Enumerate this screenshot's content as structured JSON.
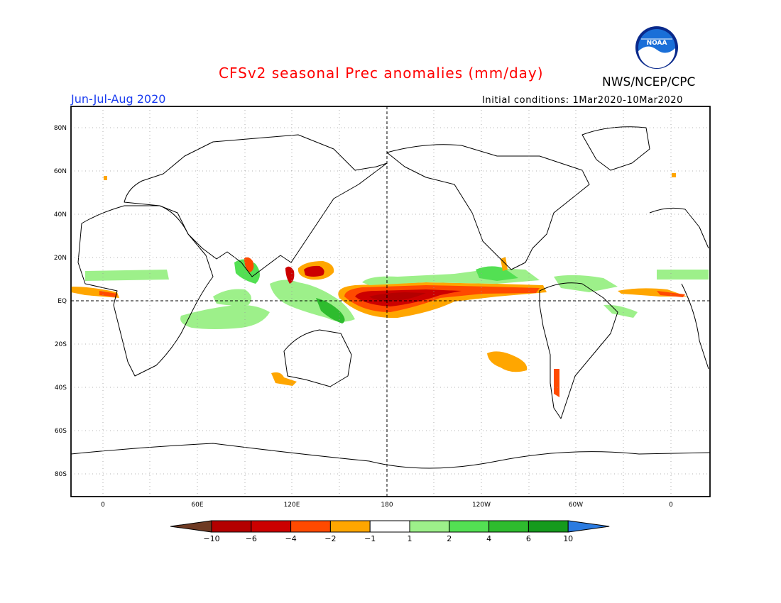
{
  "header": {
    "title": "CFSv2 seasonal Prec anomalies (mm/day)",
    "agency": "NWS/NCEP/CPC",
    "logo_text": "NOAA",
    "season": "Jun-Jul-Aug 2020",
    "initial_conditions": "Initial conditions: 1Mar2020-10Mar2020"
  },
  "map": {
    "lat_labels": [
      "80N",
      "60N",
      "40N",
      "20N",
      "EQ",
      "20S",
      "40S",
      "60S",
      "80S"
    ],
    "lon_labels": [
      "0",
      "60E",
      "120E",
      "180",
      "120W",
      "60W",
      "0"
    ]
  },
  "colorbar": {
    "labels": [
      "-10",
      "-6",
      "-4",
      "-2",
      "-1",
      "1",
      "2",
      "4",
      "6",
      "10"
    ],
    "colors": [
      "#6e3a23",
      "#b40000",
      "#cc0000",
      "#ff4a00",
      "#ffa600",
      "#ffffff",
      "#9df08a",
      "#53e053",
      "#2ebc2e",
      "#159a1d",
      "#2b7be0"
    ]
  },
  "colors": {
    "title": "#ff0000",
    "season": "#1a3cf0",
    "grid": "#9a9a9a"
  }
}
